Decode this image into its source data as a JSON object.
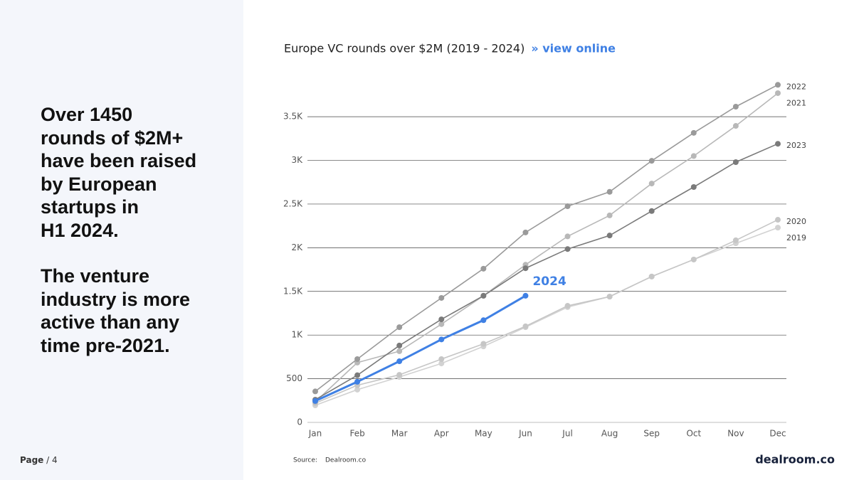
{
  "slide": {
    "headline": [
      "Over 1450",
      "rounds of $2M+",
      "have been raised",
      "by European",
      "startups in",
      "H1 2024."
    ],
    "subhead": [
      "The venture",
      "industry is more",
      "active than any",
      "time pre-2021."
    ],
    "page_label": "Page",
    "page_number": "/ 4",
    "source_label": "Source:",
    "source": "Dealroom.co",
    "logo": "dealroom.co"
  },
  "chart_data": {
    "type": "line",
    "title": "Europe VC rounds over $2M (2019 - 2024)",
    "link": "» view online",
    "categories": [
      "Jan",
      "Feb",
      "Mar",
      "Apr",
      "May",
      "Jun",
      "Jul",
      "Aug",
      "Sep",
      "Oct",
      "Nov",
      "Dec"
    ],
    "ylim": [
      0,
      3900
    ],
    "yticks": [
      0,
      500,
      {
        "value": 1000,
        "label": "1K"
      },
      {
        "value": 1500,
        "label": "1.5K"
      },
      {
        "value": 2000,
        "label": "2K"
      },
      {
        "value": 2500,
        "label": "2.5K"
      },
      {
        "value": 3000,
        "label": "3K"
      },
      {
        "value": 3500,
        "label": "3.5K"
      }
    ],
    "grid": true,
    "series": [
      {
        "name": "2019",
        "color": "#d2d2d2",
        "values": [
          195,
          375,
          520,
          675,
          870,
          1090,
          1320,
          1440,
          1670,
          1865,
          2050,
          2230
        ]
      },
      {
        "name": "2020",
        "color": "#c6c6c6",
        "values": [
          220,
          425,
          545,
          725,
          900,
          1100,
          1335,
          1440,
          1670,
          1865,
          2085,
          2320
        ]
      },
      {
        "name": "2021",
        "color": "#b8b8b8",
        "values": [
          235,
          685,
          815,
          1125,
          1450,
          1805,
          2130,
          2370,
          2735,
          3050,
          3395,
          3770
        ]
      },
      {
        "name": "2022",
        "color": "#9a9a9a",
        "values": [
          355,
          725,
          1090,
          1425,
          1760,
          2175,
          2475,
          2640,
          2995,
          3315,
          3615,
          3865
        ]
      },
      {
        "name": "2023",
        "color": "#7a7a7a",
        "values": [
          260,
          540,
          880,
          1180,
          1450,
          1765,
          1985,
          2140,
          2420,
          2695,
          2980,
          3190
        ]
      },
      {
        "name": "2024",
        "color": "#3f80e4",
        "values": [
          245,
          465,
          700,
          950,
          1170,
          1450,
          null,
          null,
          null,
          null,
          null,
          null
        ]
      }
    ]
  }
}
